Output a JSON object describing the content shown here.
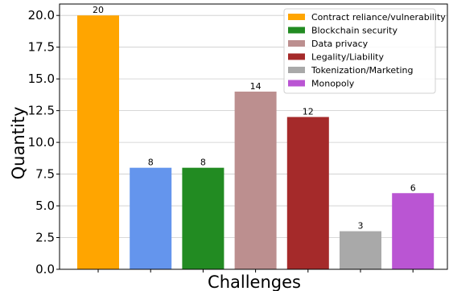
{
  "chart_data": {
    "type": "bar",
    "xlabel": "Challenges",
    "ylabel": "Quantity",
    "ylim": [
      0,
      20.9
    ],
    "yticks": [
      "0.0",
      "2.5",
      "5.0",
      "7.5",
      "10.0",
      "12.5",
      "15.0",
      "17.5",
      "20.0"
    ],
    "grid": "horizontal",
    "legend_position": "top-right",
    "categories": [
      "Contract reliance/vulnerability",
      "",
      "Blockchain security",
      "Data privacy",
      "Legality/Liability",
      "Tokenization/Marketing",
      "Monopoly"
    ],
    "values": [
      20,
      8,
      8,
      14,
      12,
      3,
      6
    ],
    "colors": [
      "#ffa500",
      "#6495ed",
      "#228b22",
      "#bc8f8f",
      "#a52a2a",
      "#a9a9a9",
      "#ba55d3"
    ],
    "legend": [
      {
        "label": "Contract reliance/vulnerability",
        "color": "#ffa500"
      },
      {
        "label": "Blockchain security",
        "color": "#228b22"
      },
      {
        "label": "Data privacy",
        "color": "#bc8f8f"
      },
      {
        "label": "Legality/Liability",
        "color": "#a52a2a"
      },
      {
        "label": "Tokenization/Marketing",
        "color": "#a9a9a9"
      },
      {
        "label": "Monopoly",
        "color": "#ba55d3"
      }
    ]
  }
}
